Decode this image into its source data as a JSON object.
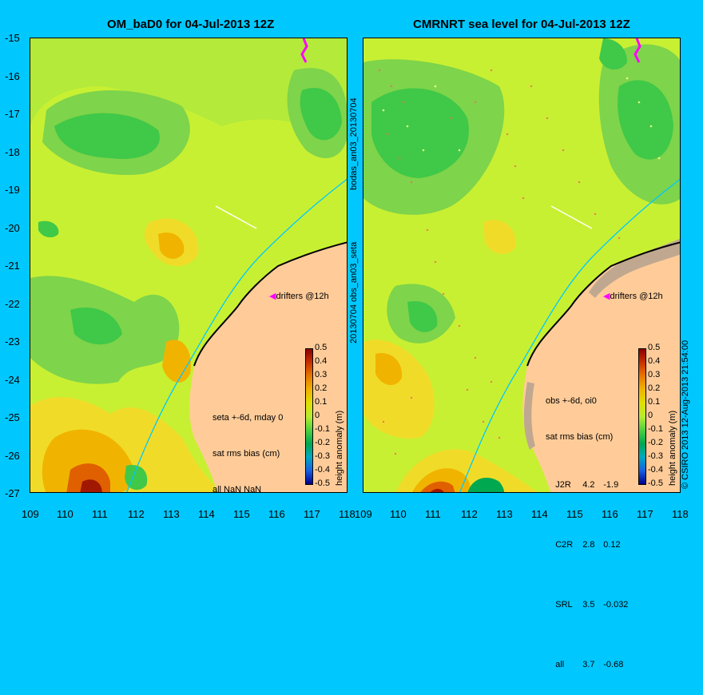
{
  "left_panel": {
    "title": "OM_baD0 for 04-Jul-2013 12Z",
    "info_lines": [
      "seta +-6d, mday 0",
      "sat rms bias (cm)",
      "all NaN NaN"
    ],
    "drifter_label": "drifters @12h"
  },
  "right_panel": {
    "title": "CMRNRT sea level  for 04-Jul-2013 12Z",
    "info_header": [
      "obs +-6d, oi0",
      "sat rms bias (cm)"
    ],
    "info_rows": [
      {
        "sat": "J2R",
        "rms": "4.2",
        "bias": "-1.9"
      },
      {
        "sat": "C2R",
        "rms": "2.8",
        "bias": "0.12"
      },
      {
        "sat": "SRL",
        "rms": "3.5",
        "bias": "-0.032"
      },
      {
        "sat": "all",
        "rms": "3.7",
        "bias": "-0.68"
      }
    ],
    "drifter_label": "drifters @12h"
  },
  "side_labels": {
    "left_between_top": "bodas_an03_20130704",
    "left_between_bottom": "20130704 obs_an03_seta",
    "right_edge": "© CSIRO 2013   12-Aug-2013 21:54:00"
  },
  "axes": {
    "y_ticks": [
      "-15",
      "-16",
      "-17",
      "-18",
      "-19",
      "-20",
      "-21",
      "-22",
      "-23",
      "-24",
      "-25",
      "-26",
      "-27"
    ],
    "x_ticks": [
      "109",
      "110",
      "111",
      "112",
      "113",
      "114",
      "115",
      "116",
      "117",
      "118"
    ]
  },
  "colorbar": {
    "label": "height anomaly (m)",
    "ticks": [
      "0.5",
      "0.4",
      "0.3",
      "0.2",
      "0.1",
      "0",
      "-0.1",
      "-0.2",
      "-0.3",
      "-0.4",
      "-0.5"
    ]
  }
}
